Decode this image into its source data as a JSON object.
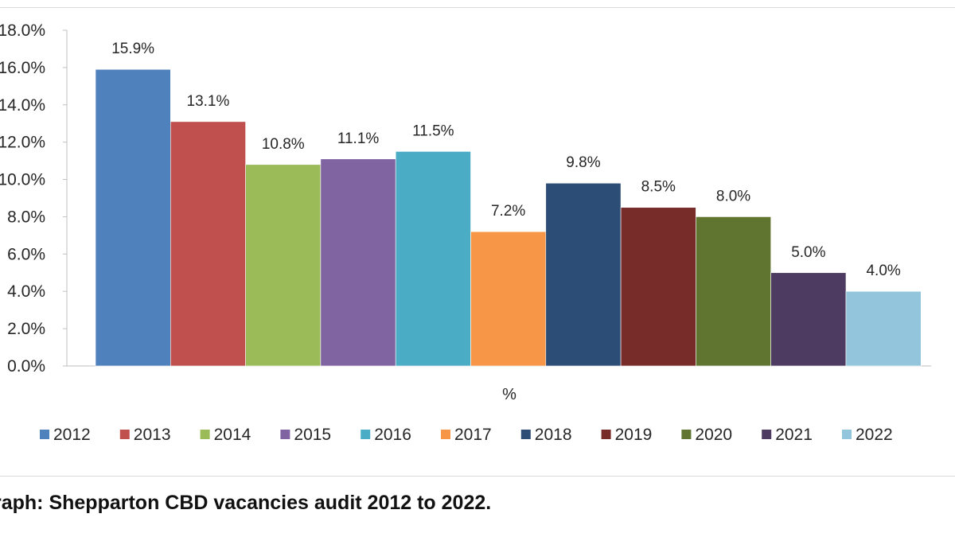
{
  "caption": "raph: Shepparton CBD vacancies audit 2012 to 2022.",
  "chart_data": {
    "type": "bar",
    "xlabel": "%",
    "ylabel": "",
    "ylim": [
      0,
      18
    ],
    "yticks": [
      0,
      2,
      4,
      6,
      8,
      10,
      12,
      14,
      16,
      18
    ],
    "ytick_labels": [
      "0.0%",
      "2.0%",
      "4.0%",
      "6.0%",
      "8.0%",
      "10.0%",
      "12.0%",
      "14.0%",
      "16.0%",
      "18.0%"
    ],
    "grid": false,
    "legend_position": "bottom",
    "series": [
      {
        "name": "2012",
        "value": 15.9,
        "label": "15.9%",
        "color": "#4F81BD"
      },
      {
        "name": "2013",
        "value": 13.1,
        "label": "13.1%",
        "color": "#C0504D"
      },
      {
        "name": "2014",
        "value": 10.8,
        "label": "10.8%",
        "color": "#9BBB59"
      },
      {
        "name": "2015",
        "value": 11.1,
        "label": "11.1%",
        "color": "#8064A2"
      },
      {
        "name": "2016",
        "value": 11.5,
        "label": "11.5%",
        "color": "#4BACC6"
      },
      {
        "name": "2017",
        "value": 7.2,
        "label": "7.2%",
        "color": "#F79646"
      },
      {
        "name": "2018",
        "value": 9.8,
        "label": "9.8%",
        "color": "#2C4D75"
      },
      {
        "name": "2019",
        "value": 8.5,
        "label": "8.5%",
        "color": "#772C2A"
      },
      {
        "name": "2020",
        "value": 8.0,
        "label": "8.0%",
        "color": "#5F7530"
      },
      {
        "name": "2021",
        "value": 5.0,
        "label": "5.0%",
        "color": "#4D3B62"
      },
      {
        "name": "2022",
        "value": 4.0,
        "label": "4.0%",
        "color": "#93C6DC"
      }
    ]
  }
}
